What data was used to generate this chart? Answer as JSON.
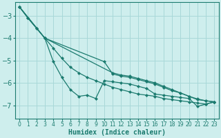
{
  "xlabel": "Humidex (Indice chaleur)",
  "background_color": "#ceeeed",
  "grid_color": "#a8d8d8",
  "line_color": "#1a7a6e",
  "xlim": [
    -0.5,
    23.5
  ],
  "ylim": [
    -7.6,
    -2.4
  ],
  "yticks": [
    -7,
    -6,
    -5,
    -4,
    -3
  ],
  "xticks": [
    0,
    1,
    2,
    3,
    4,
    5,
    6,
    7,
    8,
    9,
    10,
    11,
    12,
    13,
    14,
    15,
    16,
    17,
    18,
    19,
    20,
    21,
    22,
    23
  ],
  "series": [
    {
      "x": [
        0,
        1,
        2,
        3,
        4,
        5,
        6,
        7,
        8,
        9,
        10,
        11,
        12,
        13,
        14,
        15,
        16,
        17,
        18,
        19,
        20,
        21,
        22,
        23
      ],
      "y": [
        -2.6,
        -3.1,
        -3.55,
        -4.0,
        -4.45,
        -4.9,
        -5.3,
        -5.55,
        -5.75,
        -5.9,
        -6.05,
        -6.2,
        -6.3,
        -6.4,
        -6.5,
        -6.55,
        -6.6,
        -6.7,
        -6.75,
        -6.8,
        -6.85,
        -6.9,
        -6.95,
        -6.85
      ]
    },
    {
      "x": [
        0,
        3,
        10,
        11,
        12,
        13,
        14,
        15,
        16,
        17,
        18,
        19,
        20,
        21,
        22,
        23
      ],
      "y": [
        -2.6,
        -4.0,
        -5.05,
        -5.6,
        -5.7,
        -5.75,
        -5.85,
        -5.95,
        -6.05,
        -6.2,
        -6.35,
        -6.45,
        -6.6,
        -6.75,
        -6.8,
        -6.85
      ]
    },
    {
      "x": [
        0,
        3,
        11,
        12,
        13,
        14,
        15,
        16,
        17,
        18,
        19,
        20,
        21,
        22,
        23
      ],
      "y": [
        -2.6,
        -4.0,
        -5.55,
        -5.65,
        -5.7,
        -5.8,
        -5.9,
        -6.0,
        -6.15,
        -6.3,
        -6.45,
        -6.6,
        -6.72,
        -6.8,
        -6.85
      ]
    },
    {
      "x": [
        0,
        1,
        2,
        3,
        4,
        5,
        6,
        7,
        8,
        9,
        10,
        11,
        12,
        13,
        14,
        15,
        16,
        17,
        18,
        19,
        20,
        21,
        22,
        23
      ],
      "y": [
        -2.6,
        -3.1,
        -3.55,
        -4.0,
        -5.05,
        -5.75,
        -6.3,
        -6.6,
        -6.55,
        -6.7,
        -5.9,
        -5.95,
        -6.0,
        -6.05,
        -6.15,
        -6.25,
        -6.5,
        -6.55,
        -6.6,
        -6.65,
        -6.7,
        -7.05,
        -6.95,
        -6.85
      ]
    }
  ]
}
